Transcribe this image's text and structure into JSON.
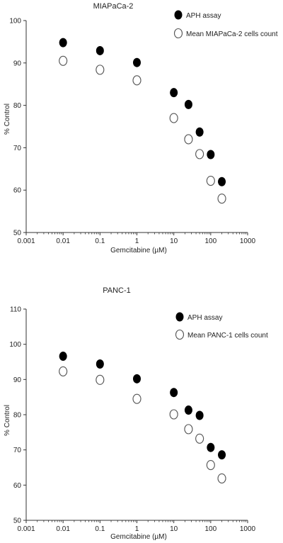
{
  "chart_data": [
    {
      "type": "scatter",
      "title": "MIAPaCa-2",
      "xlabel": "Gemcitabine (µM)",
      "ylabel": "% Control",
      "xscale": "log",
      "xlim": [
        0.001,
        1000
      ],
      "ylim": [
        50,
        100
      ],
      "x_ticks": [
        "0.001",
        "0.01",
        "0.1",
        "1",
        "10",
        "100",
        "1000"
      ],
      "y_ticks": [
        "50",
        "60",
        "70",
        "80",
        "90",
        "100"
      ],
      "legend_position": "top-right",
      "series": [
        {
          "name": "APH assay",
          "marker": "filled-circle",
          "color": "#000000",
          "points": [
            {
              "x": 0.01,
              "y": 94.8
            },
            {
              "x": 0.1,
              "y": 92.9
            },
            {
              "x": 1,
              "y": 90.1
            },
            {
              "x": 10,
              "y": 83.0
            },
            {
              "x": 25,
              "y": 80.2
            },
            {
              "x": 50,
              "y": 73.7
            },
            {
              "x": 100,
              "y": 68.4
            },
            {
              "x": 200,
              "y": 62.0
            }
          ]
        },
        {
          "name": "Mean MIAPaCa-2 cells count",
          "marker": "open-circle",
          "color": "#000000",
          "points": [
            {
              "x": 0.01,
              "y": 90.5
            },
            {
              "x": 0.1,
              "y": 88.4
            },
            {
              "x": 1,
              "y": 85.9
            },
            {
              "x": 10,
              "y": 77.0
            },
            {
              "x": 25,
              "y": 72.0
            },
            {
              "x": 50,
              "y": 68.5
            },
            {
              "x": 100,
              "y": 62.2
            },
            {
              "x": 200,
              "y": 58.0
            }
          ]
        }
      ]
    },
    {
      "type": "scatter",
      "title": "PANC-1",
      "xlabel": "Gemcitabine (µM)",
      "ylabel": "% Control",
      "xscale": "log",
      "xlim": [
        0.001,
        1000
      ],
      "ylim": [
        50,
        110
      ],
      "x_ticks": [
        "0.001",
        "0.01",
        "0.1",
        "1",
        "10",
        "100",
        "1000"
      ],
      "y_ticks": [
        "50",
        "60",
        "70",
        "80",
        "90",
        "100",
        "110"
      ],
      "legend_position": "top-right",
      "series": [
        {
          "name": "APH assay",
          "marker": "filled-circle",
          "color": "#000000",
          "points": [
            {
              "x": 0.01,
              "y": 96.6
            },
            {
              "x": 0.1,
              "y": 94.4
            },
            {
              "x": 1,
              "y": 90.2
            },
            {
              "x": 10,
              "y": 86.3
            },
            {
              "x": 25,
              "y": 81.3
            },
            {
              "x": 50,
              "y": 79.8
            },
            {
              "x": 100,
              "y": 70.7
            },
            {
              "x": 200,
              "y": 68.6
            }
          ]
        },
        {
          "name": "Mean PANC-1 cells count",
          "marker": "open-circle",
          "color": "#000000",
          "points": [
            {
              "x": 0.01,
              "y": 92.3
            },
            {
              "x": 0.1,
              "y": 89.9
            },
            {
              "x": 1,
              "y": 84.5
            },
            {
              "x": 10,
              "y": 80.1
            },
            {
              "x": 25,
              "y": 75.9
            },
            {
              "x": 50,
              "y": 73.2
            },
            {
              "x": 100,
              "y": 65.7
            },
            {
              "x": 200,
              "y": 61.9
            }
          ]
        }
      ]
    }
  ]
}
